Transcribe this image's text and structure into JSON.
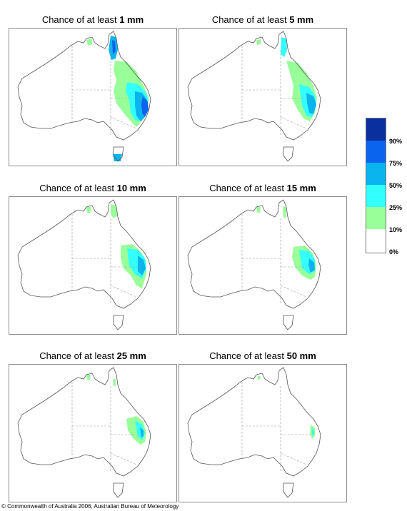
{
  "panels": [
    {
      "title_prefix": "Chance of at least ",
      "amount": "1 mm"
    },
    {
      "title_prefix": "Chance of at least ",
      "amount": "5 mm"
    },
    {
      "title_prefix": "Chance of at least ",
      "amount": "10 mm"
    },
    {
      "title_prefix": "Chance of at least ",
      "amount": "15 mm"
    },
    {
      "title_prefix": "Chance of at least ",
      "amount": "25 mm"
    },
    {
      "title_prefix": "Chance of at least ",
      "amount": "50 mm"
    }
  ],
  "legend": {
    "labels": [
      "90%",
      "75%",
      "50%",
      "25%",
      "10%",
      "0%"
    ],
    "colors": [
      "#0a2f9e",
      "#0a64ee",
      "#0ab4ee",
      "#33ffff",
      "#99ff99",
      "#ffffff"
    ]
  },
  "colors": {
    "land_outline": "#555555",
    "state_border": "#9a9a9a",
    "frame": "#8c8c8c"
  },
  "footer": {
    "copyright": "© Commonwealth of Australia 2006, Australian Bureau of Meteorology"
  }
}
